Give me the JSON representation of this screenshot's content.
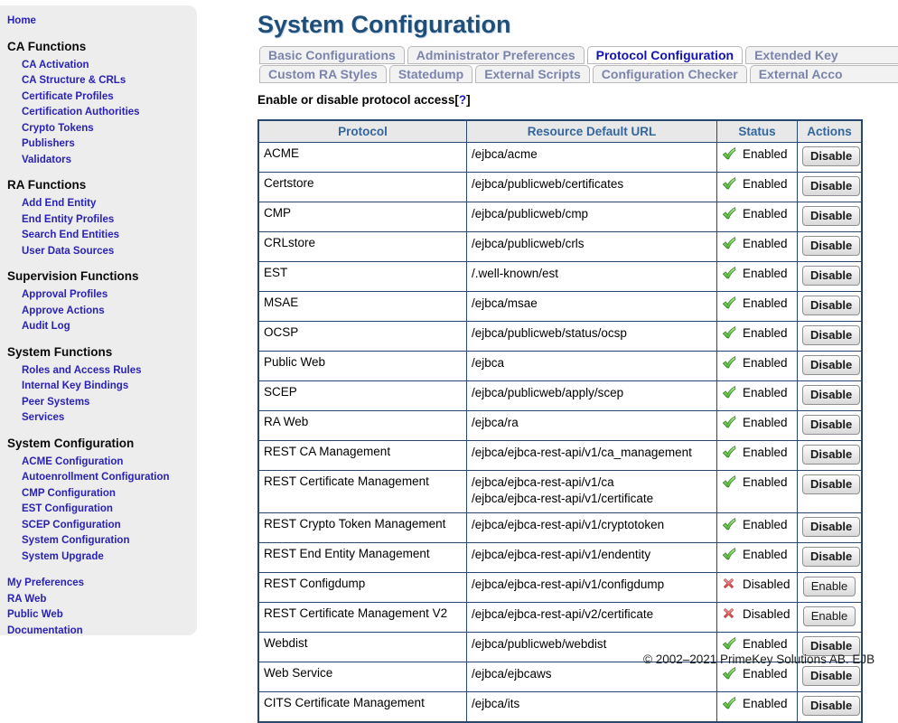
{
  "colors": {
    "title": "#1f4e79",
    "link_blue": "#2a22b5",
    "active_tab_text": "#1212b4",
    "inactive_tab_text": "#7b84ab",
    "table_border": "#29486f",
    "header_text": "#34669c",
    "enabled_green": "#49a930",
    "disabled_red": "#d13535"
  },
  "sidebar": {
    "home": "Home",
    "sections": [
      {
        "title": "CA Functions",
        "items": [
          "CA Activation",
          "CA Structure & CRLs",
          "Certificate Profiles",
          "Certification Authorities",
          "Crypto Tokens",
          "Publishers",
          "Validators"
        ]
      },
      {
        "title": "RA Functions",
        "items": [
          "Add End Entity",
          "End Entity Profiles",
          "Search End Entities",
          "User Data Sources"
        ]
      },
      {
        "title": "Supervision Functions",
        "items": [
          "Approval Profiles",
          "Approve Actions",
          "Audit Log"
        ]
      },
      {
        "title": "System Functions",
        "items": [
          "Roles and Access Rules",
          "Internal Key Bindings",
          "Peer Systems",
          "Services"
        ]
      },
      {
        "title": "System Configuration",
        "items": [
          "ACME Configuration",
          "Autoenrollment Configuration",
          "CMP Configuration",
          "EST Configuration",
          "SCEP Configuration",
          "System Configuration",
          "System Upgrade"
        ]
      }
    ],
    "footer_links": [
      "My Preferences",
      "RA Web",
      "Public Web",
      "Documentation"
    ]
  },
  "main": {
    "title": "System Configuration",
    "tabs_row1": [
      {
        "label": "Basic Configurations",
        "active": false
      },
      {
        "label": "Administrator Preferences",
        "active": false
      },
      {
        "label": "Protocol Configuration",
        "active": true
      },
      {
        "label": "Extended Key",
        "active": false,
        "cut": true
      }
    ],
    "tabs_row2": [
      {
        "label": "Custom RA Styles",
        "active": false
      },
      {
        "label": "Statedump",
        "active": false
      },
      {
        "label": "External Scripts",
        "active": false
      },
      {
        "label": "Configuration Checker",
        "active": false
      },
      {
        "label": "External Acco",
        "active": false,
        "cut": true
      }
    ],
    "help_text": "Enable or disable protocol access",
    "help_bracket_open": "[",
    "help_link": "?",
    "help_bracket_close": "]"
  },
  "table": {
    "headers": [
      "Protocol",
      "Resource Default URL",
      "Status",
      "Actions"
    ],
    "status_labels": {
      "enabled": "Enabled",
      "disabled": "Disabled"
    },
    "action_labels": {
      "enabled": "Disable",
      "disabled": "Enable"
    },
    "rows": [
      {
        "protocol": "ACME",
        "urls": [
          "/ejbca/acme"
        ],
        "enabled": true
      },
      {
        "protocol": "Certstore",
        "urls": [
          "/ejbca/publicweb/certificates"
        ],
        "enabled": true
      },
      {
        "protocol": "CMP",
        "urls": [
          "/ejbca/publicweb/cmp"
        ],
        "enabled": true
      },
      {
        "protocol": "CRLstore",
        "urls": [
          "/ejbca/publicweb/crls"
        ],
        "enabled": true
      },
      {
        "protocol": "EST",
        "urls": [
          "/.well-known/est"
        ],
        "enabled": true
      },
      {
        "protocol": "MSAE",
        "urls": [
          "/ejbca/msae"
        ],
        "enabled": true
      },
      {
        "protocol": "OCSP",
        "urls": [
          "/ejbca/publicweb/status/ocsp"
        ],
        "enabled": true
      },
      {
        "protocol": "Public Web",
        "urls": [
          "/ejbca"
        ],
        "enabled": true
      },
      {
        "protocol": "SCEP",
        "urls": [
          "/ejbca/publicweb/apply/scep"
        ],
        "enabled": true
      },
      {
        "protocol": "RA Web",
        "urls": [
          "/ejbca/ra"
        ],
        "enabled": true
      },
      {
        "protocol": "REST CA Management",
        "urls": [
          "/ejbca/ejbca-rest-api/v1/ca_management"
        ],
        "enabled": true
      },
      {
        "protocol": "REST Certificate Management",
        "urls": [
          "/ejbca/ejbca-rest-api/v1/ca",
          "/ejbca/ejbca-rest-api/v1/certificate"
        ],
        "enabled": true
      },
      {
        "protocol": "REST Crypto Token Management",
        "urls": [
          "/ejbca/ejbca-rest-api/v1/cryptotoken"
        ],
        "enabled": true
      },
      {
        "protocol": "REST End Entity Management",
        "urls": [
          "/ejbca/ejbca-rest-api/v1/endentity"
        ],
        "enabled": true
      },
      {
        "protocol": "REST Configdump",
        "urls": [
          "/ejbca/ejbca-rest-api/v1/configdump"
        ],
        "enabled": false
      },
      {
        "protocol": "REST Certificate Management V2",
        "urls": [
          "/ejbca/ejbca-rest-api/v2/certificate"
        ],
        "enabled": false
      },
      {
        "protocol": "Webdist",
        "urls": [
          "/ejbca/publicweb/webdist"
        ],
        "enabled": true
      },
      {
        "protocol": "Web Service",
        "urls": [
          "/ejbca/ejbcaws"
        ],
        "enabled": true
      },
      {
        "protocol": "CITS Certificate Management",
        "urls": [
          "/ejbca/its"
        ],
        "enabled": true
      }
    ]
  },
  "footer": {
    "copyright": "© 2002–2021 PrimeKey Solutions AB. EJB"
  }
}
